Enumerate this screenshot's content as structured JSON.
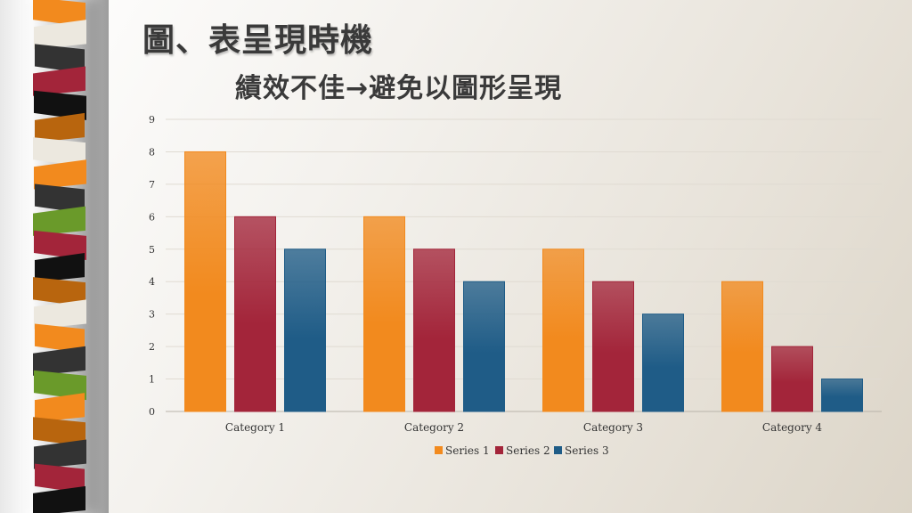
{
  "slide": {
    "title": "圖、表呈現時機",
    "subtitle": "績效不佳→避免以圖形呈現"
  },
  "decor": {
    "stripe_colors": [
      "#f28a1e",
      "#ece8df",
      "#333333",
      "#a3253a",
      "#111111",
      "#b8650e",
      "#ece8df",
      "#f28a1e",
      "#333333",
      "#6a9a2a",
      "#a3253a",
      "#111111",
      "#b8650e",
      "#ece8df",
      "#f28a1e",
      "#333333",
      "#6a9a2a",
      "#f28a1e",
      "#b8650e",
      "#333333",
      "#a3253a",
      "#111111"
    ]
  },
  "chart_data": {
    "type": "bar",
    "categories": [
      "Category 1",
      "Category 2",
      "Category 3",
      "Category 4"
    ],
    "series": [
      {
        "name": "Series 1",
        "values": [
          8,
          6,
          5,
          4
        ],
        "color": "#f28a1e"
      },
      {
        "name": "Series 2",
        "values": [
          6,
          5,
          4,
          2
        ],
        "color": "#a3253a"
      },
      {
        "name": "Series 3",
        "values": [
          5,
          4,
          3,
          1
        ],
        "color": "#1f5c87"
      }
    ],
    "ylim": [
      0,
      9
    ],
    "yticks": [
      0,
      1,
      2,
      3,
      4,
      5,
      6,
      7,
      8,
      9
    ],
    "grid": true,
    "legend": "bottom"
  }
}
